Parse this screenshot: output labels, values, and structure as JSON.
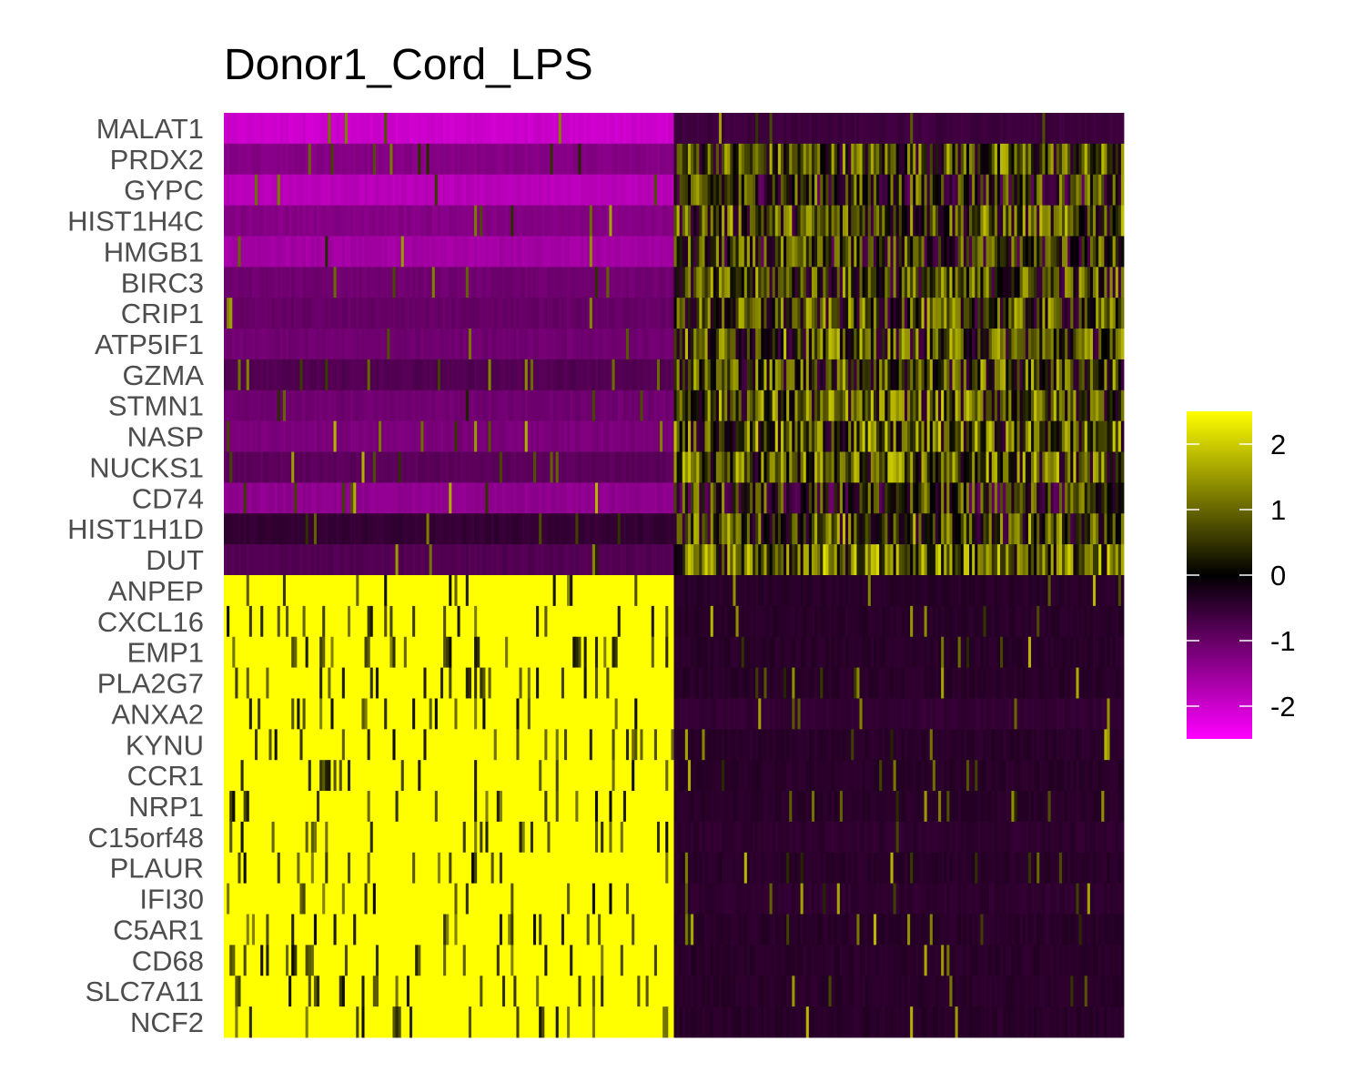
{
  "chart_data": {
    "type": "heatmap",
    "title": "Donor1_Cord_LPS",
    "genes": [
      "MALAT1",
      "PRDX2",
      "GYPC",
      "HIST1H4C",
      "HMGB1",
      "BIRC3",
      "CRIP1",
      "ATP5IF1",
      "GZMA",
      "STMN1",
      "NASP",
      "NUCKS1",
      "CD74",
      "HIST1H1D",
      "DUT",
      "ANPEP",
      "CXCL16",
      "EMP1",
      "PLA2G7",
      "ANXA2",
      "KYNU",
      "CCR1",
      "NRP1",
      "C15orf48",
      "PLAUR",
      "IFI30",
      "C5AR1",
      "CD68",
      "SLC7A11",
      "NCF2"
    ],
    "cell_groups": [
      {
        "fraction": 0.5
      },
      {
        "fraction": 0.5
      }
    ],
    "group_mean_scaled_expression": [
      [
        -2.0,
        -0.6
      ],
      [
        -1.3,
        0.6
      ],
      [
        -1.8,
        0.3
      ],
      [
        -1.3,
        0.6
      ],
      [
        -1.6,
        0.3
      ],
      [
        -1.1,
        0.5
      ],
      [
        -1.0,
        0.5
      ],
      [
        -1.1,
        0.6
      ],
      [
        -0.8,
        0.6
      ],
      [
        -1.1,
        0.7
      ],
      [
        -1.2,
        0.7
      ],
      [
        -0.9,
        0.7
      ],
      [
        -1.4,
        0.2
      ],
      [
        -0.5,
        0.6
      ],
      [
        -0.8,
        0.9
      ],
      [
        2.5,
        -0.4
      ],
      [
        2.5,
        -0.4
      ],
      [
        2.5,
        -0.4
      ],
      [
        2.5,
        -0.4
      ],
      [
        2.5,
        -0.5
      ],
      [
        2.5,
        -0.4
      ],
      [
        2.5,
        -0.4
      ],
      [
        2.5,
        -0.4
      ],
      [
        2.5,
        -0.45
      ],
      [
        2.5,
        -0.4
      ],
      [
        2.5,
        -0.45
      ],
      [
        2.5,
        -0.4
      ],
      [
        2.5,
        -0.4
      ],
      [
        2.5,
        -0.4
      ],
      [
        2.5,
        -0.4
      ]
    ],
    "color_scale": {
      "min": -2.5,
      "max": 2.5,
      "low": "#ff00ff",
      "mid": "#000000",
      "high": "#ffff00"
    },
    "legend": {
      "ticks": [
        2,
        1,
        0,
        -1,
        -2
      ],
      "labels": [
        "2",
        "1",
        "0",
        "-1",
        "-2"
      ],
      "range": [
        -2.5,
        2.5
      ],
      "position": "right"
    }
  }
}
